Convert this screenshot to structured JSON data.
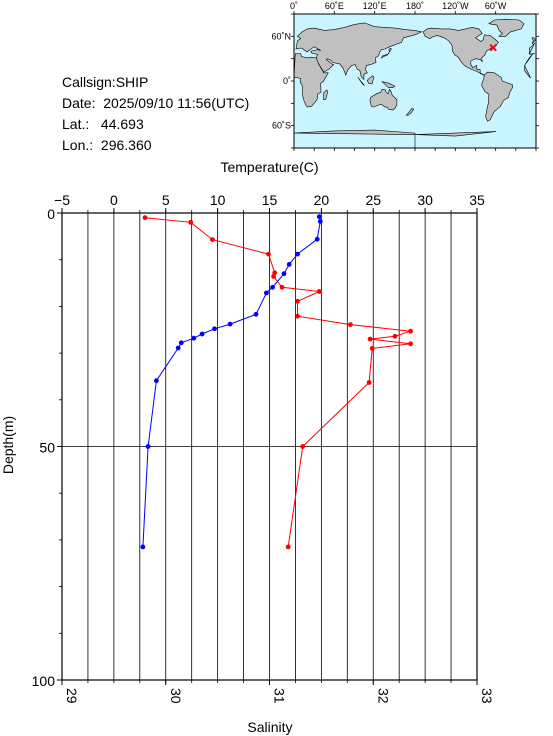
{
  "station": {
    "callsign": "Callsign:SHIP",
    "date": "Date:  2025/09/10 11:56(UTC)",
    "lat": "Lat.:   44.693",
    "lon": "Lon.:  296.360"
  },
  "map": {
    "top_labels": [
      "0˚",
      "60˚E",
      "120˚E",
      "180˚",
      "120˚W",
      "60˚W"
    ],
    "left_labels": [
      "60˚N",
      "0˚",
      "60˚S"
    ],
    "ocean_color": "#c8f5ff",
    "land_color": "#c0c0c0",
    "marker_color": "#ff0000",
    "marker": {
      "lat": 44.693,
      "lon": 296.36
    }
  },
  "chart_data": {
    "type": "line",
    "ylabel": "Depth(m)",
    "top_axis_label": "Temperature(C)",
    "bottom_axis_label": "Salinity",
    "y_range": [
      0,
      100
    ],
    "y_inverted": true,
    "y_ticks": [
      "0",
      "50",
      "100"
    ],
    "temperature_range": [
      -5,
      35
    ],
    "temperature_ticks": [
      "−5",
      "0",
      "5",
      "10",
      "15",
      "20",
      "25",
      "30",
      "35"
    ],
    "salinity_range": [
      29,
      33
    ],
    "salinity_ticks": [
      "29",
      "30",
      "31",
      "32",
      "33"
    ],
    "grid": true,
    "series": [
      {
        "axis": "temperature",
        "color": "#ff0000",
        "points": [
          {
            "x": 3.0,
            "depth": 1.0
          },
          {
            "x": 7.4,
            "depth": 2.0
          },
          {
            "x": 9.5,
            "depth": 5.7
          },
          {
            "x": 14.9,
            "depth": 8.8
          },
          {
            "x": 15.5,
            "depth": 12.8
          },
          {
            "x": 15.4,
            "depth": 13.6
          },
          {
            "x": 16.2,
            "depth": 15.9
          },
          {
            "x": 19.8,
            "depth": 16.8
          },
          {
            "x": 17.7,
            "depth": 18.9
          },
          {
            "x": 17.7,
            "depth": 22.1
          },
          {
            "x": 22.8,
            "depth": 23.9
          },
          {
            "x": 28.6,
            "depth": 25.3
          },
          {
            "x": 27.1,
            "depth": 26.4
          },
          {
            "x": 24.7,
            "depth": 27.0
          },
          {
            "x": 28.6,
            "depth": 28.0
          },
          {
            "x": 24.9,
            "depth": 29.0
          },
          {
            "x": 24.6,
            "depth": 36.3
          },
          {
            "x": 18.2,
            "depth": 50.0
          },
          {
            "x": 16.8,
            "depth": 71.5
          }
        ]
      },
      {
        "axis": "salinity",
        "color": "#0000ff",
        "points": [
          {
            "x": 31.48,
            "depth": 0.8
          },
          {
            "x": 31.49,
            "depth": 1.8
          },
          {
            "x": 31.46,
            "depth": 5.6
          },
          {
            "x": 31.27,
            "depth": 8.8
          },
          {
            "x": 31.19,
            "depth": 11.0
          },
          {
            "x": 31.14,
            "depth": 13.0
          },
          {
            "x": 31.03,
            "depth": 15.9
          },
          {
            "x": 30.97,
            "depth": 17.1
          },
          {
            "x": 30.87,
            "depth": 21.7
          },
          {
            "x": 30.62,
            "depth": 23.8
          },
          {
            "x": 30.47,
            "depth": 24.8
          },
          {
            "x": 30.35,
            "depth": 25.9
          },
          {
            "x": 30.27,
            "depth": 26.8
          },
          {
            "x": 30.15,
            "depth": 27.8
          },
          {
            "x": 30.12,
            "depth": 28.9
          },
          {
            "x": 29.91,
            "depth": 35.9
          },
          {
            "x": 29.83,
            "depth": 50.0
          },
          {
            "x": 29.78,
            "depth": 71.5
          }
        ]
      }
    ]
  }
}
